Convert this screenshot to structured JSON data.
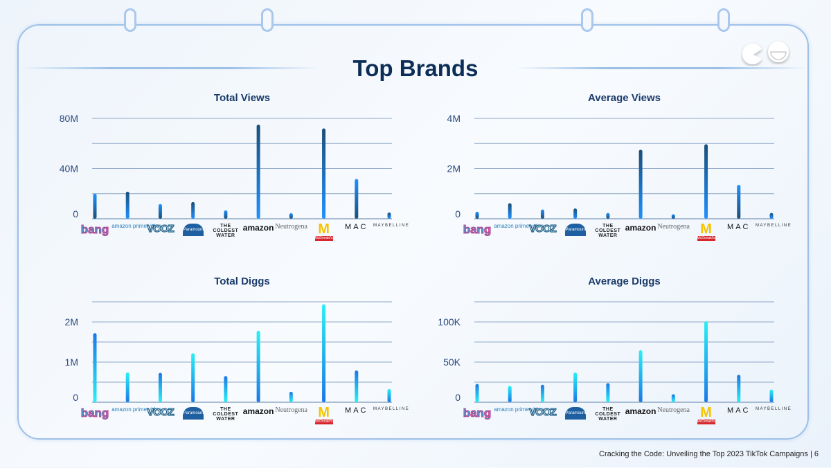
{
  "header": {
    "title": "Top Brands"
  },
  "footer": {
    "text": "Cracking the Code: Unveiling the Top 2023 TikTok Campaigns |  6"
  },
  "colors": {
    "frame": "#9dc0e8",
    "title": "#0c2d57",
    "views_dark": "#1b4f78",
    "views_bright": "#1e90ff",
    "diggs_cyan": "#2af0f5",
    "diggs_blue": "#1a78e6",
    "grid": "#8ea7c6"
  },
  "brand_logos": [
    "bang",
    "amazon prime video",
    "VOOZ",
    "Paramount",
    "THE COLDEST WATER",
    "amazon",
    "Neutrogena",
    "McDonald's",
    "MAC",
    "MAYBELLINE"
  ],
  "chart_data": [
    {
      "type": "bar",
      "title": "Total Views",
      "categories": [
        "bang",
        "prime video",
        "VOOZ",
        "Paramount",
        "The Coldest Water",
        "amazon",
        "Neutrogena",
        "McDonald's",
        "MAC",
        "Maybelline"
      ],
      "values": [
        20000000,
        21600000,
        11700000,
        13300000,
        6700000,
        75000000,
        4400000,
        72000000,
        31700000,
        5000000
      ],
      "ylim": [
        0,
        80000000
      ],
      "yticks": [
        0,
        20000000,
        40000000,
        60000000,
        80000000
      ],
      "ytick_labels": [
        "0",
        "",
        "40M",
        "",
        "80M"
      ],
      "grid": true,
      "palette": "views"
    },
    {
      "type": "bar",
      "title": "Average Views",
      "categories": [
        "bang",
        "prime video",
        "VOOZ",
        "Paramount",
        "The Coldest Water",
        "amazon",
        "Neutrogena",
        "McDonald's",
        "MAC",
        "Maybelline"
      ],
      "values": [
        280000,
        620000,
        370000,
        410000,
        230000,
        2750000,
        180000,
        2970000,
        1350000,
        230000
      ],
      "ylim": [
        0,
        4000000
      ],
      "yticks": [
        0,
        1000000,
        2000000,
        3000000,
        4000000
      ],
      "ytick_labels": [
        "0",
        "",
        "2M",
        "",
        "4M"
      ],
      "grid": true,
      "palette": "views"
    },
    {
      "type": "bar",
      "title": "Total Diggs",
      "categories": [
        "bang",
        "prime video",
        "VOOZ",
        "Paramount",
        "The Coldest Water",
        "amazon",
        "Neutrogena",
        "McDonald's",
        "MAC",
        "Maybelline"
      ],
      "values": [
        1720000,
        740000,
        730000,
        1220000,
        650000,
        1780000,
        260000,
        2440000,
        790000,
        330000
      ],
      "ylim": [
        0,
        2500000
      ],
      "yticks": [
        0,
        500000,
        1000000,
        1500000,
        2000000,
        2500000
      ],
      "ytick_labels": [
        "0",
        "",
        "1M",
        "",
        "2M",
        ""
      ],
      "grid": true,
      "palette": "diggs"
    },
    {
      "type": "bar",
      "title": "Average Diggs",
      "categories": [
        "bang",
        "prime video",
        "VOOZ",
        "Paramount",
        "The Coldest Water",
        "amazon",
        "Neutrogena",
        "McDonald's",
        "MAC",
        "Maybelline"
      ],
      "values": [
        22700,
        20300,
        21800,
        36900,
        23800,
        64800,
        9900,
        100900,
        34000,
        15700
      ],
      "ylim": [
        0,
        125000
      ],
      "yticks": [
        0,
        25000,
        50000,
        75000,
        100000,
        125000
      ],
      "ytick_labels": [
        "0",
        "",
        "50K",
        "",
        "100K",
        ""
      ],
      "grid": true,
      "palette": "diggs"
    }
  ]
}
